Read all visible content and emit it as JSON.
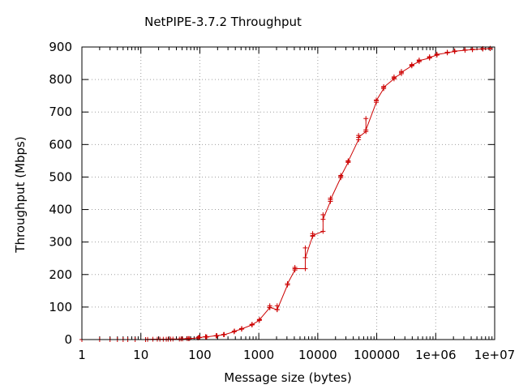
{
  "chart_data": {
    "type": "line",
    "title": "NetPIPE-3.7.2 Throughput",
    "xlabel": "Message size (bytes)",
    "ylabel": "Throughput (Mbps)",
    "x_scale": "log",
    "xlim": [
      1,
      10000000
    ],
    "ylim": [
      0,
      900
    ],
    "grid": true,
    "x_ticks": [
      {
        "value": 1,
        "label": "1"
      },
      {
        "value": 10,
        "label": "10"
      },
      {
        "value": 100,
        "label": "100"
      },
      {
        "value": 1000,
        "label": "1000"
      },
      {
        "value": 10000,
        "label": "10000"
      },
      {
        "value": 100000,
        "label": "100000"
      },
      {
        "value": 1000000,
        "label": "1e+06"
      },
      {
        "value": 10000000,
        "label": "1e+07"
      }
    ],
    "y_ticks": [
      {
        "value": 0,
        "label": "0"
      },
      {
        "value": 100,
        "label": "100"
      },
      {
        "value": 200,
        "label": "200"
      },
      {
        "value": 300,
        "label": "300"
      },
      {
        "value": 400,
        "label": "400"
      },
      {
        "value": 500,
        "label": "500"
      },
      {
        "value": 600,
        "label": "600"
      },
      {
        "value": 700,
        "label": "700"
      },
      {
        "value": 800,
        "label": "800"
      },
      {
        "value": 900,
        "label": "900"
      }
    ],
    "series": [
      {
        "color": "#cc0000",
        "marker": "plus",
        "points": [
          [
            1,
            0
          ],
          [
            2,
            0
          ],
          [
            3,
            0
          ],
          [
            4,
            0
          ],
          [
            5,
            0
          ],
          [
            6,
            0
          ],
          [
            8,
            0
          ],
          [
            12,
            0
          ],
          [
            13,
            0.5
          ],
          [
            16,
            1
          ],
          [
            19,
            1
          ],
          [
            21,
            1
          ],
          [
            24,
            1
          ],
          [
            27,
            1
          ],
          [
            29,
            1
          ],
          [
            32,
            1.5
          ],
          [
            35,
            1.5
          ],
          [
            45,
            1.5
          ],
          [
            48,
            2
          ],
          [
            51,
            2
          ],
          [
            61,
            3
          ],
          [
            64,
            3
          ],
          [
            67,
            3
          ],
          [
            93,
            5
          ],
          [
            96,
            7
          ],
          [
            99,
            6
          ],
          [
            125,
            9
          ],
          [
            128,
            8
          ],
          [
            131,
            8
          ],
          [
            189,
            12
          ],
          [
            192,
            11
          ],
          [
            195,
            12
          ],
          [
            253,
            15
          ],
          [
            256,
            16
          ],
          [
            259,
            15
          ],
          [
            381,
            24
          ],
          [
            384,
            26
          ],
          [
            387,
            26
          ],
          [
            509,
            32
          ],
          [
            512,
            34
          ],
          [
            515,
            33
          ],
          [
            765,
            45
          ],
          [
            768,
            47
          ],
          [
            771,
            46
          ],
          [
            1021,
            59
          ],
          [
            1024,
            62
          ],
          [
            1027,
            61
          ],
          [
            1533,
            98
          ],
          [
            1536,
            104
          ],
          [
            1539,
            99
          ],
          [
            2045,
            92
          ],
          [
            2048,
            104
          ],
          [
            2051,
            92
          ],
          [
            3069,
            168
          ],
          [
            3072,
            172
          ],
          [
            3075,
            172
          ],
          [
            4093,
            214
          ],
          [
            4096,
            222
          ],
          [
            4099,
            218
          ],
          [
            6141,
            218
          ],
          [
            6144,
            282
          ],
          [
            6147,
            252
          ],
          [
            8189,
            318
          ],
          [
            8192,
            326
          ],
          [
            8195,
            320
          ],
          [
            12285,
            333
          ],
          [
            12288,
            384
          ],
          [
            12291,
            370
          ],
          [
            16381,
            425
          ],
          [
            16384,
            435
          ],
          [
            16387,
            430
          ],
          [
            24573,
            498
          ],
          [
            24576,
            505
          ],
          [
            24579,
            502
          ],
          [
            32765,
            545
          ],
          [
            32768,
            550
          ],
          [
            32771,
            548
          ],
          [
            49149,
            615
          ],
          [
            49152,
            628
          ],
          [
            49155,
            622
          ],
          [
            65533,
            640
          ],
          [
            65536,
            680
          ],
          [
            65539,
            645
          ],
          [
            98301,
            730
          ],
          [
            98304,
            737
          ],
          [
            98307,
            735
          ],
          [
            131069,
            772
          ],
          [
            131072,
            778
          ],
          [
            131075,
            776
          ],
          [
            196605,
            802
          ],
          [
            196608,
            808
          ],
          [
            196611,
            805
          ],
          [
            262141,
            818
          ],
          [
            262144,
            825
          ],
          [
            262147,
            822
          ],
          [
            393213,
            842
          ],
          [
            393216,
            846
          ],
          [
            393219,
            844
          ],
          [
            524285,
            855
          ],
          [
            524288,
            860
          ],
          [
            524291,
            858
          ],
          [
            786429,
            866
          ],
          [
            786432,
            870
          ],
          [
            786435,
            868
          ],
          [
            1048573,
            875
          ],
          [
            1048576,
            878
          ],
          [
            1048579,
            877
          ],
          [
            1572861,
            882
          ],
          [
            1572864,
            884
          ],
          [
            1572867,
            883
          ],
          [
            2097149,
            886
          ],
          [
            2097152,
            888
          ],
          [
            2097155,
            887
          ],
          [
            3145725,
            890
          ],
          [
            3145728,
            891
          ],
          [
            3145731,
            890
          ],
          [
            4194301,
            892
          ],
          [
            4194304,
            893
          ],
          [
            4194307,
            892
          ],
          [
            6291453,
            894
          ],
          [
            6291456,
            895
          ],
          [
            6291459,
            894
          ],
          [
            8388605,
            895
          ],
          [
            8388608,
            896
          ],
          [
            8388611,
            895
          ]
        ]
      }
    ]
  }
}
